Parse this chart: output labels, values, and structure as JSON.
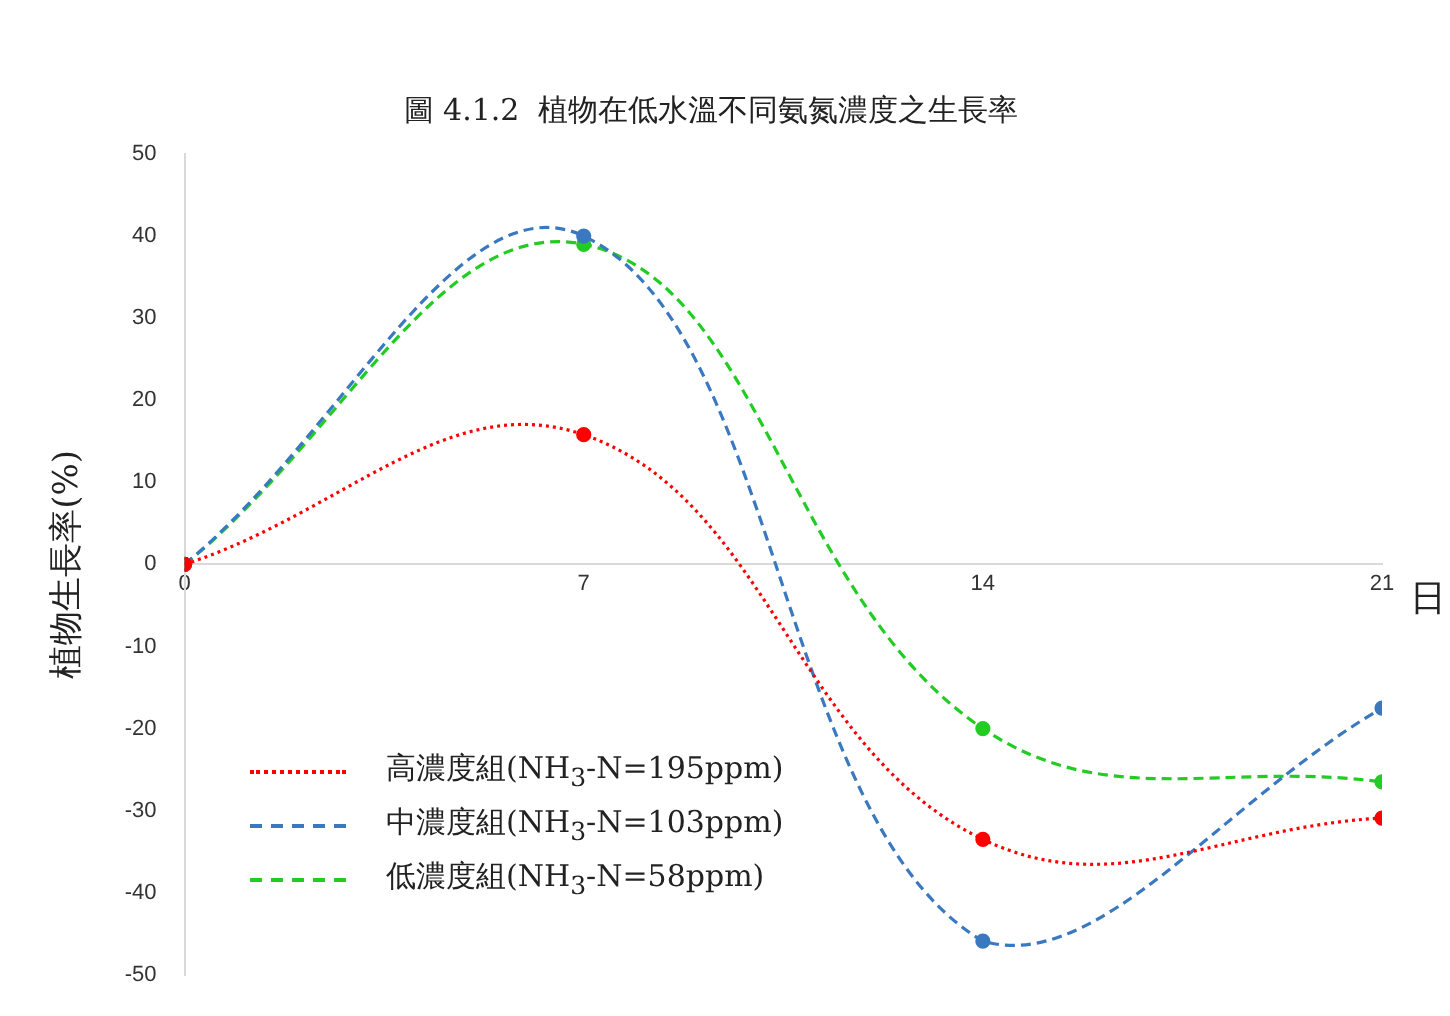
{
  "chart_data": {
    "type": "line",
    "title": "圖 4.1.2  植物在低水溫不同氨氮濃度之生長率",
    "ylabel": "植物生長率(%)",
    "xlabel": "日",
    "x": [
      0,
      7,
      14,
      21
    ],
    "series": [
      {
        "name": "高濃度組(NH$_{3}$-N=195ppm)",
        "color": "#ff0000",
        "line_style": "dotted",
        "values": [
          0,
          15.8,
          -33.5,
          -30.9
        ]
      },
      {
        "name": "中濃度組(NH$_{3}$-N=103ppm)",
        "color": "#3a78c0",
        "line_style": "dashed",
        "values": [
          0,
          40,
          -45.9,
          -17.5
        ]
      },
      {
        "name": "低濃度組(NH$_{3}$-N=58ppm)",
        "color": "#22cc22",
        "line_style": "dashed",
        "values": [
          0,
          39,
          -20,
          -26.5
        ]
      }
    ],
    "xlim": [
      0,
      21
    ],
    "xticks": [
      0,
      7,
      14,
      21
    ],
    "ylim": [
      -50,
      50
    ],
    "yticks": [
      -50,
      -40,
      -30,
      -20,
      -10,
      0,
      10,
      20,
      30,
      40,
      50
    ],
    "grid": false,
    "legend": "bottom left",
    "marker": "circle"
  }
}
